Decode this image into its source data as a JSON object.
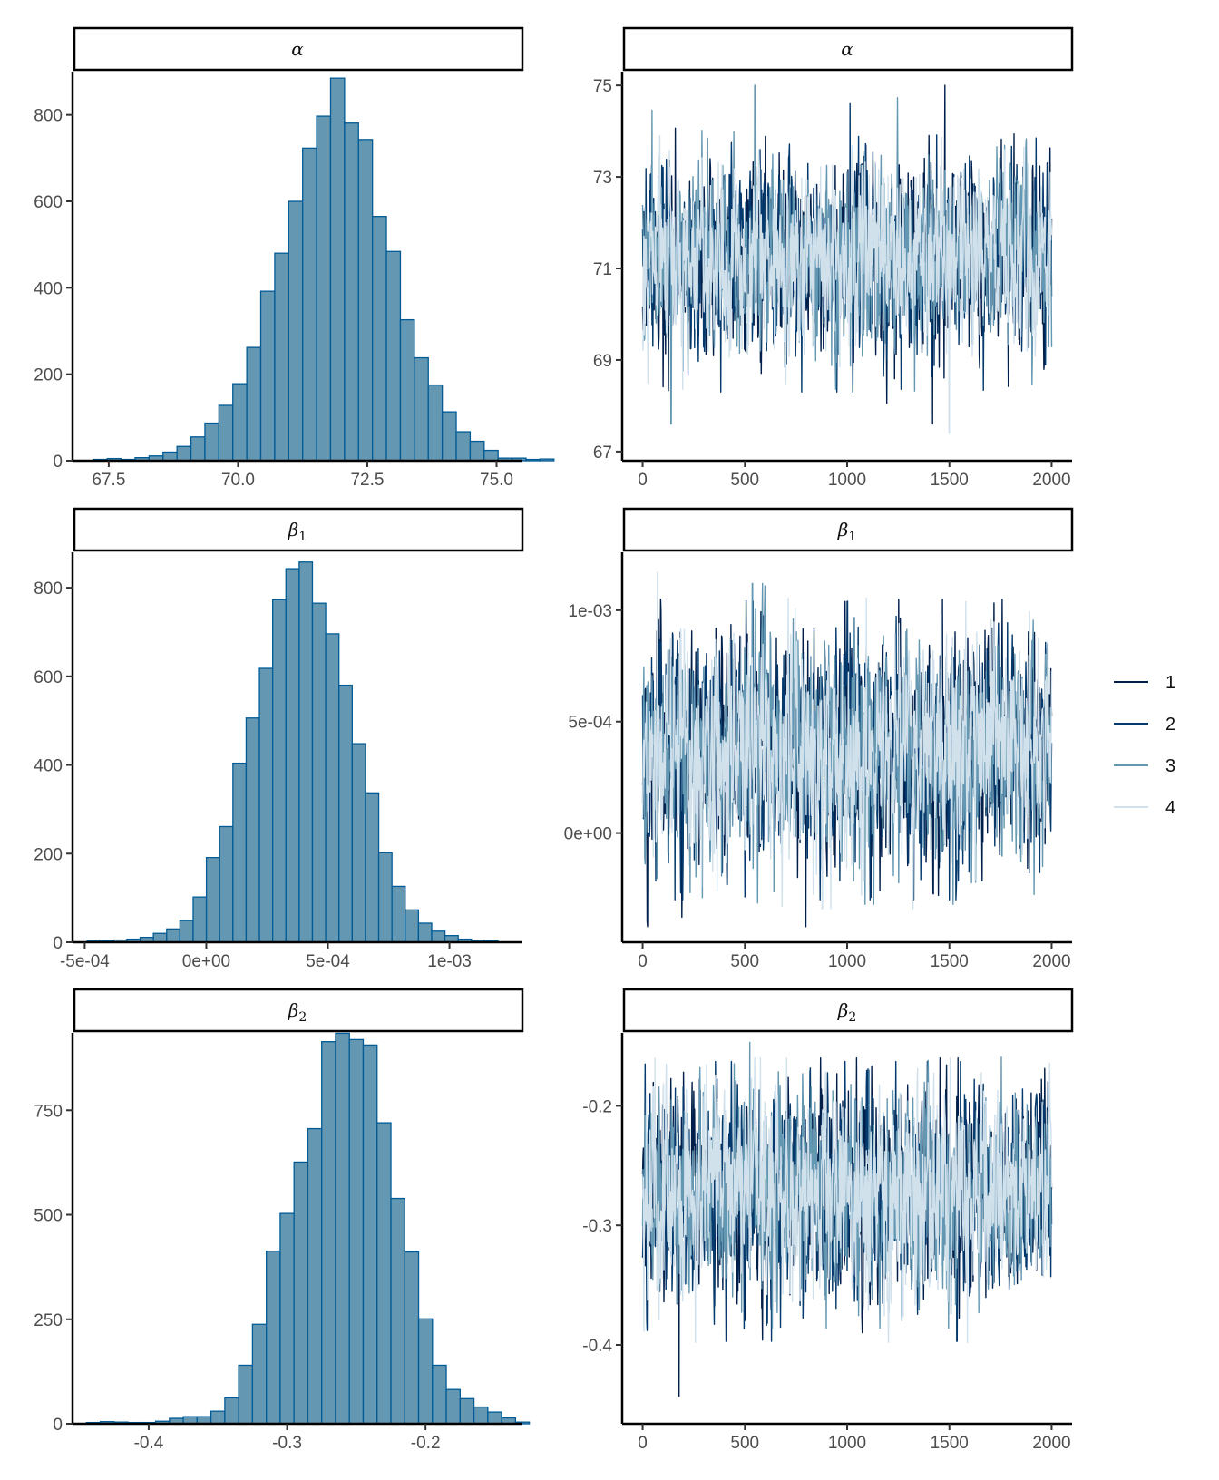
{
  "colors": {
    "hist_fill": "#6497b1",
    "hist_stroke": "#005b96",
    "chains": [
      "#011f4b",
      "#03396c",
      "#6497b1",
      "#d1e1ec"
    ]
  },
  "legend": {
    "items": [
      "1",
      "2",
      "3",
      "4"
    ]
  },
  "chart_data": [
    {
      "type": "bar",
      "strip": "α",
      "subtype": "histogram",
      "x_ticks": [
        "67.5",
        "70.0",
        "72.5",
        "75.0"
      ],
      "y_ticks": [
        "0",
        "200",
        "400",
        "600",
        "800"
      ],
      "xlim": [
        66.8,
        75.5
      ],
      "ylim": [
        0,
        900
      ],
      "bin_start": 67.2,
      "bin_width": 0.27,
      "counts": [
        3,
        5,
        3,
        7,
        11,
        20,
        33,
        55,
        87,
        128,
        178,
        262,
        392,
        480,
        600,
        723,
        797,
        885,
        781,
        743,
        565,
        484,
        326,
        238,
        175,
        113,
        67,
        45,
        24,
        6,
        6,
        3,
        4
      ]
    },
    {
      "type": "line",
      "strip": "α",
      "subtype": "trace",
      "x_ticks": [
        "0",
        "500",
        "1000",
        "1500",
        "2000"
      ],
      "y_ticks": [
        "67",
        "69",
        "71",
        "73",
        "75"
      ],
      "xlim": [
        -100,
        2100
      ],
      "ylim": [
        66.8,
        75.3
      ],
      "n_iter": 2000,
      "center": 71.2,
      "sd": 0.95,
      "series": [
        {
          "name": "1",
          "min": 67.6,
          "max": 75.0
        },
        {
          "name": "2",
          "min": 68.3,
          "max": 74.6
        },
        {
          "name": "3",
          "min": 67.6,
          "max": 75.0
        },
        {
          "name": "4",
          "min": 67.4,
          "max": 73.9
        }
      ]
    },
    {
      "type": "bar",
      "strip": "β1",
      "subtype": "histogram",
      "x_ticks": [
        "-5e-04",
        "0e+00",
        "5e-04",
        "1e-03"
      ],
      "y_ticks": [
        "0",
        "200",
        "400",
        "600",
        "800"
      ],
      "xlim": [
        -0.00055,
        0.0013
      ],
      "ylim": [
        0,
        880
      ],
      "bin_start": -0.00049,
      "bin_width": 5.45e-05,
      "counts": [
        4,
        3,
        5,
        7,
        11,
        20,
        30,
        49,
        102,
        191,
        261,
        404,
        506,
        618,
        773,
        843,
        858,
        765,
        696,
        580,
        448,
        337,
        202,
        126,
        73,
        43,
        25,
        15,
        7,
        4,
        3
      ]
    },
    {
      "type": "line",
      "strip": "β1",
      "subtype": "trace",
      "x_ticks": [
        "0",
        "500",
        "1000",
        "1500",
        "2000"
      ],
      "y_ticks": [
        "0e+00",
        "5e-04",
        "1e-03"
      ],
      "xlim": [
        -100,
        2100
      ],
      "ylim": [
        -0.00049,
        0.00126
      ],
      "n_iter": 2000,
      "center": 0.00037,
      "sd": 0.00024,
      "series": [
        {
          "name": "1",
          "min": -0.00042,
          "max": 0.00105
        },
        {
          "name": "2",
          "min": -0.0003,
          "max": 0.00104
        },
        {
          "name": "3",
          "min": -0.00032,
          "max": 0.00112
        },
        {
          "name": "4",
          "min": -0.00034,
          "max": 0.00117
        }
      ]
    },
    {
      "type": "bar",
      "strip": "β2",
      "subtype": "histogram",
      "x_ticks": [
        "-0.4",
        "-0.3",
        "-0.2"
      ],
      "y_ticks": [
        "0",
        "250",
        "500",
        "750"
      ],
      "xlim": [
        -0.455,
        -0.13
      ],
      "ylim": [
        0,
        935
      ],
      "bin_start": -0.445,
      "bin_width": 0.01,
      "counts": [
        3,
        5,
        4,
        3,
        3,
        6,
        13,
        17,
        17,
        30,
        62,
        140,
        238,
        413,
        503,
        626,
        706,
        914,
        934,
        919,
        906,
        720,
        539,
        411,
        251,
        140,
        82,
        60,
        40,
        28,
        14,
        4
      ]
    },
    {
      "type": "line",
      "strip": "β2",
      "subtype": "trace",
      "x_ticks": [
        "0",
        "500",
        "1000",
        "1500",
        "2000"
      ],
      "y_ticks": [
        "-0.2",
        "-0.3",
        "-0.4"
      ],
      "xlim": [
        -100,
        2100
      ],
      "ylim": [
        -0.466,
        -0.139
      ],
      "n_iter": 2000,
      "center": -0.273,
      "sd": 0.042,
      "series": [
        {
          "name": "1",
          "min": -0.443,
          "max": -0.16
        },
        {
          "name": "2",
          "min": -0.397,
          "max": -0.163
        },
        {
          "name": "3",
          "min": -0.386,
          "max": -0.147
        },
        {
          "name": "4",
          "min": -0.398,
          "max": -0.16
        }
      ]
    }
  ]
}
